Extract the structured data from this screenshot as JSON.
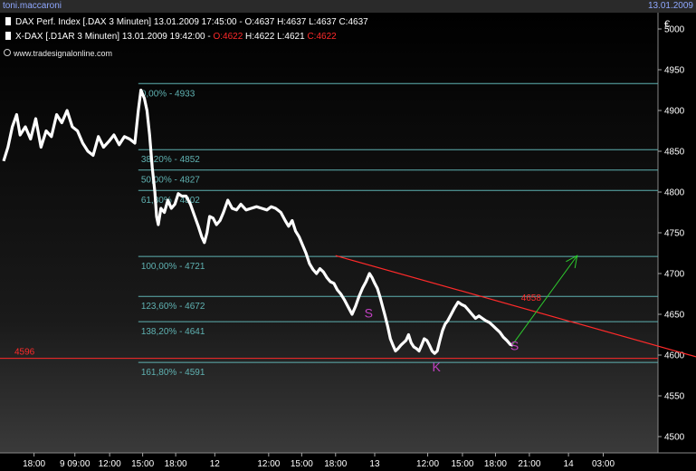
{
  "window": {
    "title": "toni.maccaroni",
    "date": "13.01.2009"
  },
  "legend": [
    {
      "parts": [
        {
          "text": "DAX Perf. Index [.DAX  3 Minuten] 13.01.2009 17:45:00 - O:4637 H:4637 L:4637 C:4637",
          "color": "#ffffff"
        }
      ]
    },
    {
      "parts": [
        {
          "text": "X-DAX [.D1AR  3 Minuten] 13.01.2009 19:42:00 - ",
          "color": "#ffffff"
        },
        {
          "text": "O:4622",
          "color": "#ff2a2a"
        },
        {
          "text": " H:4622 L:4621 ",
          "color": "#ffffff"
        },
        {
          "text": "C:4622",
          "color": "#ff2a2a"
        }
      ]
    }
  ],
  "credit": "www.tradesignalonline.com",
  "chart_data": {
    "type": "line",
    "currency": "€",
    "ylim": [
      4480,
      5020
    ],
    "y_ticks": [
      4500,
      4550,
      4600,
      4650,
      4700,
      4750,
      4800,
      4850,
      4900,
      4950,
      5000
    ],
    "x_ticks": [
      {
        "label": "18:00",
        "t": 30
      },
      {
        "label": "9 09:00",
        "t": 77
      },
      {
        "label": "12:00",
        "t": 117
      },
      {
        "label": "15:00",
        "t": 155
      },
      {
        "label": "18:00",
        "t": 193
      },
      {
        "label": "12",
        "t": 238
      },
      {
        "label": "12:00",
        "t": 300
      },
      {
        "label": "15:00",
        "t": 338
      },
      {
        "label": "18:00",
        "t": 377
      },
      {
        "label": "13",
        "t": 422
      },
      {
        "label": "12:00",
        "t": 483
      },
      {
        "label": "15:00",
        "t": 523
      },
      {
        "label": "18:00",
        "t": 561
      },
      {
        "label": "21:00",
        "t": 600
      },
      {
        "label": "14",
        "t": 645
      },
      {
        "label": "03:00",
        "t": 685
      }
    ],
    "t_range": [
      -5,
      748
    ],
    "fibonacci": [
      {
        "label": "0,00% - 4933",
        "value": 4933
      },
      {
        "label": "38,20% - 4852",
        "value": 4852
      },
      {
        "label": "50,00% - 4827",
        "value": 4827
      },
      {
        "label": "61,80% - 4802",
        "value": 4802
      },
      {
        "label": "100,00% - 4721",
        "value": 4721
      },
      {
        "label": "123,60% - 4672",
        "value": 4672
      },
      {
        "label": "138,20% - 4641",
        "value": 4641
      },
      {
        "label": "161,80% - 4591",
        "value": 4591
      }
    ],
    "fib_color": "#5fb2b2",
    "support": {
      "value": 4596,
      "label": "4596",
      "color": "#ff2a2a"
    },
    "trendline": {
      "from": {
        "t": 377,
        "v": 4722
      },
      "to": {
        "t": 748,
        "v": 4611
      },
      "color": "#ff2a2a"
    },
    "trend_label": {
      "text": "4658",
      "t": 580,
      "v": 4670
    },
    "projection": {
      "from": {
        "t": 580,
        "v": 4612
      },
      "to": {
        "t": 655,
        "v": 4722
      },
      "color": "#2ecc2e"
    },
    "annotations": [
      {
        "text": "S",
        "t": 415,
        "v": 4646,
        "color": "#c040c0"
      },
      {
        "text": "K",
        "t": 493,
        "v": 4580,
        "color": "#c040c0"
      },
      {
        "text": "S",
        "t": 583,
        "v": 4606,
        "color": "#c040c0"
      }
    ],
    "series": [
      {
        "values": [
          [
            -5,
            4838
          ],
          [
            0,
            4855
          ],
          [
            5,
            4880
          ],
          [
            10,
            4895
          ],
          [
            14,
            4870
          ],
          [
            20,
            4880
          ],
          [
            26,
            4865
          ],
          [
            32,
            4890
          ],
          [
            38,
            4855
          ],
          [
            44,
            4875
          ],
          [
            50,
            4868
          ],
          [
            56,
            4895
          ],
          [
            62,
            4885
          ],
          [
            68,
            4900
          ],
          [
            74,
            4880
          ],
          [
            80,
            4875
          ],
          [
            86,
            4860
          ],
          [
            92,
            4850
          ],
          [
            98,
            4845
          ],
          [
            104,
            4868
          ],
          [
            110,
            4855
          ],
          [
            116,
            4862
          ],
          [
            122,
            4870
          ],
          [
            128,
            4858
          ],
          [
            134,
            4868
          ],
          [
            140,
            4865
          ],
          [
            146,
            4860
          ],
          [
            150,
            4900
          ],
          [
            153,
            4925
          ],
          [
            157,
            4915
          ],
          [
            160,
            4900
          ],
          [
            163,
            4870
          ],
          [
            166,
            4830
          ],
          [
            169,
            4800
          ],
          [
            171,
            4770
          ],
          [
            173,
            4760
          ],
          [
            176,
            4780
          ],
          [
            180,
            4775
          ],
          [
            184,
            4790
          ],
          [
            188,
            4780
          ],
          [
            192,
            4785
          ],
          [
            196,
            4798
          ],
          [
            200,
            4795
          ],
          [
            205,
            4795
          ],
          [
            210,
            4785
          ],
          [
            215,
            4770
          ],
          [
            219,
            4758
          ],
          [
            223,
            4745
          ],
          [
            226,
            4738
          ],
          [
            229,
            4750
          ],
          [
            232,
            4770
          ],
          [
            236,
            4768
          ],
          [
            240,
            4760
          ],
          [
            244,
            4765
          ],
          [
            248,
            4775
          ],
          [
            253,
            4790
          ],
          [
            258,
            4780
          ],
          [
            263,
            4778
          ],
          [
            268,
            4785
          ],
          [
            274,
            4778
          ],
          [
            280,
            4780
          ],
          [
            286,
            4782
          ],
          [
            292,
            4780
          ],
          [
            298,
            4778
          ],
          [
            303,
            4782
          ],
          [
            308,
            4780
          ],
          [
            314,
            4775
          ],
          [
            319,
            4765
          ],
          [
            323,
            4758
          ],
          [
            327,
            4765
          ],
          [
            331,
            4752
          ],
          [
            335,
            4745
          ],
          [
            339,
            4735
          ],
          [
            343,
            4725
          ],
          [
            347,
            4712
          ],
          [
            351,
            4705
          ],
          [
            355,
            4700
          ],
          [
            359,
            4706
          ],
          [
            363,
            4702
          ],
          [
            367,
            4695
          ],
          [
            371,
            4690
          ],
          [
            375,
            4688
          ],
          [
            379,
            4680
          ],
          [
            383,
            4675
          ],
          [
            387,
            4668
          ],
          [
            391,
            4660
          ],
          [
            396,
            4650
          ],
          [
            400,
            4660
          ],
          [
            404,
            4672
          ],
          [
            408,
            4682
          ],
          [
            412,
            4690
          ],
          [
            416,
            4700
          ],
          [
            419,
            4695
          ],
          [
            422,
            4688
          ],
          [
            425,
            4682
          ],
          [
            428,
            4672
          ],
          [
            431,
            4660
          ],
          [
            434,
            4648
          ],
          [
            437,
            4635
          ],
          [
            440,
            4620
          ],
          [
            443,
            4612
          ],
          [
            446,
            4605
          ],
          [
            449,
            4608
          ],
          [
            452,
            4612
          ],
          [
            455,
            4615
          ],
          [
            458,
            4618
          ],
          [
            461,
            4625
          ],
          [
            464,
            4615
          ],
          [
            467,
            4610
          ],
          [
            470,
            4608
          ],
          [
            473,
            4605
          ],
          [
            476,
            4612
          ],
          [
            479,
            4620
          ],
          [
            482,
            4618
          ],
          [
            485,
            4612
          ],
          [
            488,
            4605
          ],
          [
            491,
            4602
          ],
          [
            494,
            4605
          ],
          [
            497,
            4618
          ],
          [
            500,
            4630
          ],
          [
            503,
            4638
          ],
          [
            506,
            4642
          ],
          [
            510,
            4650
          ],
          [
            514,
            4658
          ],
          [
            518,
            4665
          ],
          [
            522,
            4662
          ],
          [
            526,
            4660
          ],
          [
            530,
            4655
          ],
          [
            534,
            4650
          ],
          [
            538,
            4645
          ],
          [
            542,
            4648
          ],
          [
            546,
            4645
          ],
          [
            550,
            4642
          ],
          [
            554,
            4640
          ],
          [
            558,
            4636
          ],
          [
            562,
            4632
          ],
          [
            566,
            4628
          ],
          [
            570,
            4622
          ],
          [
            574,
            4618
          ],
          [
            578,
            4613
          ],
          [
            581,
            4612
          ]
        ]
      }
    ]
  }
}
